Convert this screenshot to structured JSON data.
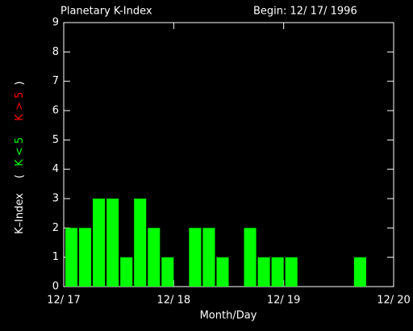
{
  "chart_data": {
    "type": "bar",
    "title": "Planetary K-Index",
    "subtitle": "Begin: 12/ 17/ 1996",
    "x_label": "Month/Day",
    "y_label": "K–Index",
    "legend_brackets": [
      "(",
      ")"
    ],
    "legend": [
      {
        "name": "K < 5",
        "color": "#00ff00"
      },
      {
        "name": "K > 5",
        "color": "#ff0000"
      }
    ],
    "x": [
      0,
      3,
      6,
      9,
      12,
      15,
      18,
      21,
      24,
      27,
      30,
      33,
      36,
      39,
      42,
      45,
      48,
      51,
      54,
      57,
      60,
      63,
      66,
      69
    ],
    "series": [
      {
        "name": "K < 5",
        "color": "#00ff00",
        "values": [
          2,
          2,
          3,
          3,
          1,
          3,
          2,
          1,
          0,
          2,
          2,
          1,
          0,
          2,
          1,
          1,
          1,
          0,
          0,
          0,
          0,
          1,
          0,
          0
        ]
      }
    ],
    "xlim": [
      0,
      72
    ],
    "xticks": [
      {
        "value": 0,
        "label": "12/ 17"
      },
      {
        "value": 24,
        "label": "12/ 18"
      },
      {
        "value": 48,
        "label": "12/ 19"
      },
      {
        "value": 72,
        "label": "12/ 20"
      }
    ],
    "ylim": [
      0,
      9
    ],
    "yticks": [
      0,
      1,
      2,
      3,
      4,
      5,
      6,
      7,
      8,
      9
    ]
  }
}
